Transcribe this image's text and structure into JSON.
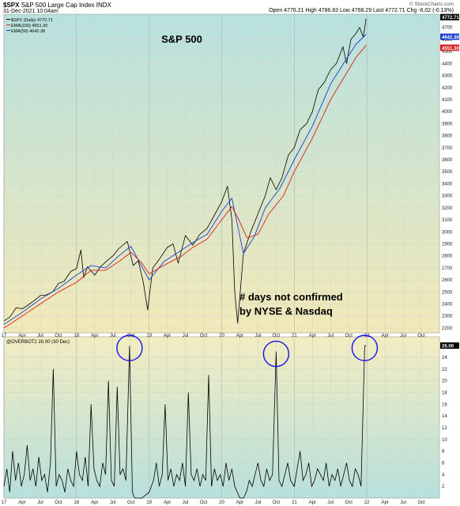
{
  "header": {
    "symbol": "$SPX",
    "name": "S&P 500 Large Cap Index",
    "exchange": "INDX",
    "datetime": "31-Dec-2021 10:04am",
    "credit": "© StockCharts.com",
    "ohlc": "Open 4776.21  High 4786.83  Low 4768.29  Last 4772.71  Chg -6.02 (-0.13%)"
  },
  "colors": {
    "price": "#000000",
    "ema100": "#d42020",
    "ema50": "#1a3fd0",
    "indicator": "#000000",
    "circle": "#1414e6",
    "bg_top_start": "#b7e1de",
    "bg_top_end": "#f2e9b8",
    "bg_bottom_start": "#f3ecc0",
    "bg_bottom_end": "#b7e0dc"
  },
  "chart_data": [
    {
      "type": "line",
      "title": "S&P 500",
      "legend": [
        "$SPX (Daily) 4772.71",
        "EMA(100) 4551.30",
        "EMA(50) 4642.38"
      ],
      "legend_placement": "top-left",
      "x_tick_labels": [
        "17",
        "Apr",
        "Jul",
        "Oct",
        "18",
        "Apr",
        "Jul",
        "Oct",
        "19",
        "Apr",
        "Jul",
        "Oct",
        "20",
        "Apr",
        "Jul",
        "Oct",
        "21",
        "Apr",
        "Jul",
        "Oct",
        "22",
        "Apr",
        "Jul",
        "Oct"
      ],
      "y_tick_labels": [
        "2200",
        "2300",
        "2400",
        "2500",
        "2600",
        "2700",
        "2800",
        "2900",
        "3000",
        "3100",
        "3200",
        "3300",
        "3400",
        "3500",
        "3600",
        "3700",
        "3800",
        "3900",
        "4000",
        "4100",
        "4200",
        "4300",
        "4400",
        "4500",
        "4600",
        "4700"
      ],
      "ylim": [
        2160,
        4810
      ],
      "last_value_labels": [
        "4772.71",
        "4642.38",
        "4551.30"
      ],
      "annotation": "# days not confirmed\nby NYSE & Nasdaq",
      "series": [
        {
          "name": "$SPX (Daily)",
          "x": [
            2017.0,
            2017.08,
            2017.17,
            2017.25,
            2017.33,
            2017.42,
            2017.5,
            2017.58,
            2017.67,
            2017.75,
            2017.83,
            2017.92,
            2018.0,
            2018.06,
            2018.1,
            2018.15,
            2018.25,
            2018.33,
            2018.42,
            2018.5,
            2018.58,
            2018.7,
            2018.78,
            2018.85,
            2018.92,
            2018.98,
            2019.05,
            2019.15,
            2019.25,
            2019.33,
            2019.4,
            2019.5,
            2019.6,
            2019.7,
            2019.8,
            2019.9,
            2020.0,
            2020.08,
            2020.14,
            2020.18,
            2020.22,
            2020.3,
            2020.4,
            2020.5,
            2020.6,
            2020.67,
            2020.75,
            2020.83,
            2020.92,
            2021.0,
            2021.08,
            2021.17,
            2021.25,
            2021.33,
            2021.42,
            2021.5,
            2021.58,
            2021.67,
            2021.72,
            2021.78,
            2021.85,
            2021.9,
            2021.95,
            2021.99
          ],
          "y": [
            2260,
            2290,
            2370,
            2360,
            2390,
            2430,
            2470,
            2475,
            2500,
            2570,
            2590,
            2670,
            2695,
            2850,
            2620,
            2710,
            2640,
            2710,
            2760,
            2800,
            2860,
            2920,
            2720,
            2760,
            2580,
            2350,
            2700,
            2780,
            2870,
            2900,
            2740,
            2970,
            2890,
            2980,
            3030,
            3140,
            3250,
            3380,
            3100,
            2500,
            2240,
            2820,
            3000,
            3150,
            3300,
            3450,
            3350,
            3450,
            3640,
            3700,
            3850,
            3900,
            4000,
            4180,
            4250,
            4350,
            4400,
            4540,
            4400,
            4600,
            4650,
            4700,
            4620,
            4772
          ]
        },
        {
          "name": "EMA(50)",
          "x": [
            2017.0,
            2017.25,
            2017.5,
            2017.75,
            2018.0,
            2018.2,
            2018.4,
            2018.6,
            2018.75,
            2018.9,
            2019.0,
            2019.2,
            2019.45,
            2019.6,
            2019.8,
            2020.0,
            2020.14,
            2020.22,
            2020.3,
            2020.45,
            2020.6,
            2020.8,
            2021.0,
            2021.25,
            2021.5,
            2021.7,
            2021.85,
            2021.99
          ],
          "y": [
            2230,
            2330,
            2440,
            2530,
            2640,
            2720,
            2700,
            2810,
            2880,
            2710,
            2600,
            2750,
            2850,
            2910,
            2980,
            3170,
            3280,
            3050,
            2820,
            2960,
            3200,
            3360,
            3600,
            3880,
            4230,
            4420,
            4560,
            4642
          ]
        },
        {
          "name": "EMA(100)",
          "x": [
            2017.0,
            2017.25,
            2017.5,
            2017.75,
            2018.0,
            2018.2,
            2018.4,
            2018.6,
            2018.75,
            2018.9,
            2019.0,
            2019.2,
            2019.45,
            2019.6,
            2019.8,
            2020.0,
            2020.14,
            2020.22,
            2020.35,
            2020.5,
            2020.65,
            2020.85,
            2021.0,
            2021.25,
            2021.5,
            2021.7,
            2021.85,
            2021.99
          ],
          "y": [
            2200,
            2300,
            2400,
            2500,
            2580,
            2680,
            2680,
            2760,
            2830,
            2740,
            2650,
            2720,
            2800,
            2870,
            2940,
            3100,
            3210,
            3120,
            2950,
            2980,
            3150,
            3300,
            3500,
            3780,
            4100,
            4300,
            4450,
            4551
          ]
        }
      ]
    },
    {
      "type": "line",
      "title": "@OVERBOT2 26.00 (30 Dec)",
      "legend_placement": "top-left",
      "x_tick_labels": [
        "17",
        "Apr",
        "Jul",
        "Oct",
        "18",
        "Apr",
        "Jul",
        "Oct",
        "19",
        "Apr",
        "Jul",
        "Oct",
        "20",
        "Apr",
        "Jul",
        "Oct",
        "21",
        "Apr",
        "Jul",
        "Oct",
        "22",
        "Apr",
        "Jul",
        "Oct"
      ],
      "y_tick_labels": [
        "2",
        "4",
        "6",
        "8",
        "10",
        "12",
        "14",
        "16",
        "18",
        "20",
        "22",
        "24"
      ],
      "ylim": [
        0,
        27.5
      ],
      "last_value_label": "26.00",
      "highlighted_peaks": [
        {
          "x": 2018.73,
          "y": 26
        },
        {
          "x": 2020.75,
          "y": 25
        },
        {
          "x": 2021.97,
          "y": 26
        }
      ],
      "series": [
        {
          "name": "@OVERBOT2",
          "x": [
            2017.0,
            2017.04,
            2017.08,
            2017.12,
            2017.16,
            2017.2,
            2017.24,
            2017.28,
            2017.32,
            2017.36,
            2017.4,
            2017.44,
            2017.48,
            2017.52,
            2017.56,
            2017.6,
            2017.64,
            2017.68,
            2017.72,
            2017.76,
            2017.8,
            2017.84,
            2017.88,
            2017.92,
            2017.96,
            2018.0,
            2018.04,
            2018.08,
            2018.12,
            2018.16,
            2018.2,
            2018.24,
            2018.28,
            2018.32,
            2018.36,
            2018.4,
            2018.44,
            2018.48,
            2018.52,
            2018.56,
            2018.6,
            2018.64,
            2018.68,
            2018.73,
            2018.77,
            2018.8,
            2018.86,
            2018.9,
            2019.0,
            2019.06,
            2019.1,
            2019.14,
            2019.18,
            2019.22,
            2019.26,
            2019.3,
            2019.34,
            2019.38,
            2019.42,
            2019.46,
            2019.5,
            2019.54,
            2019.58,
            2019.62,
            2019.66,
            2019.7,
            2019.74,
            2019.78,
            2019.82,
            2019.86,
            2019.9,
            2019.94,
            2019.98,
            2020.02,
            2020.06,
            2020.1,
            2020.14,
            2020.18,
            2020.25,
            2020.3,
            2020.34,
            2020.38,
            2020.42,
            2020.46,
            2020.5,
            2020.54,
            2020.58,
            2020.62,
            2020.66,
            2020.7,
            2020.75,
            2020.79,
            2020.83,
            2020.87,
            2020.91,
            2020.95,
            2021.0,
            2021.04,
            2021.08,
            2021.12,
            2021.16,
            2021.2,
            2021.24,
            2021.28,
            2021.32,
            2021.36,
            2021.4,
            2021.44,
            2021.48,
            2021.52,
            2021.56,
            2021.6,
            2021.64,
            2021.68,
            2021.72,
            2021.76,
            2021.8,
            2021.84,
            2021.88,
            2021.92,
            2021.97,
            2021.99
          ],
          "y": [
            2,
            5,
            1,
            8,
            3,
            6,
            2,
            4,
            9,
            3,
            5,
            2,
            7,
            3,
            4,
            1,
            6,
            22,
            2,
            4,
            3,
            1,
            5,
            3,
            2,
            8,
            4,
            3,
            7,
            2,
            16,
            5,
            3,
            2,
            6,
            4,
            20,
            3,
            2,
            19,
            4,
            5,
            3,
            26,
            1,
            0,
            0,
            0,
            1,
            3,
            6,
            2,
            4,
            16,
            3,
            5,
            2,
            4,
            3,
            6,
            2,
            18,
            4,
            3,
            5,
            2,
            4,
            3,
            21,
            2,
            5,
            3,
            4,
            2,
            6,
            3,
            5,
            2,
            0,
            0,
            1,
            3,
            2,
            4,
            6,
            3,
            2,
            5,
            3,
            4,
            25,
            3,
            2,
            4,
            6,
            3,
            2,
            5,
            8,
            3,
            4,
            6,
            2,
            3,
            5,
            4,
            3,
            6,
            2,
            4,
            3,
            5,
            2,
            4,
            6,
            3,
            2,
            5,
            4,
            2,
            26,
            26
          ]
        }
      ]
    }
  ]
}
